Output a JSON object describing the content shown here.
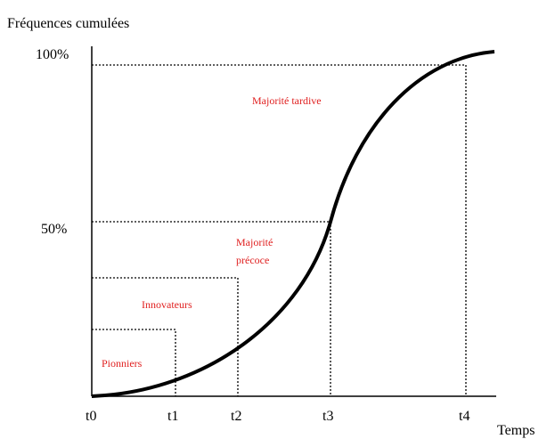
{
  "diagram": {
    "y_axis_title": "Fréquences cumulées",
    "x_axis_title": "Temps",
    "y_labels": [
      "100%",
      "50%"
    ],
    "x_labels": [
      "t0",
      "t1",
      "t2",
      "t3",
      "t4"
    ],
    "regions": {
      "pioneers": "Pionniers",
      "innovators": "Innovateurs",
      "early_majority": [
        "Majorité",
        "précoce"
      ],
      "late_majority": "Majorité tardive"
    }
  }
}
